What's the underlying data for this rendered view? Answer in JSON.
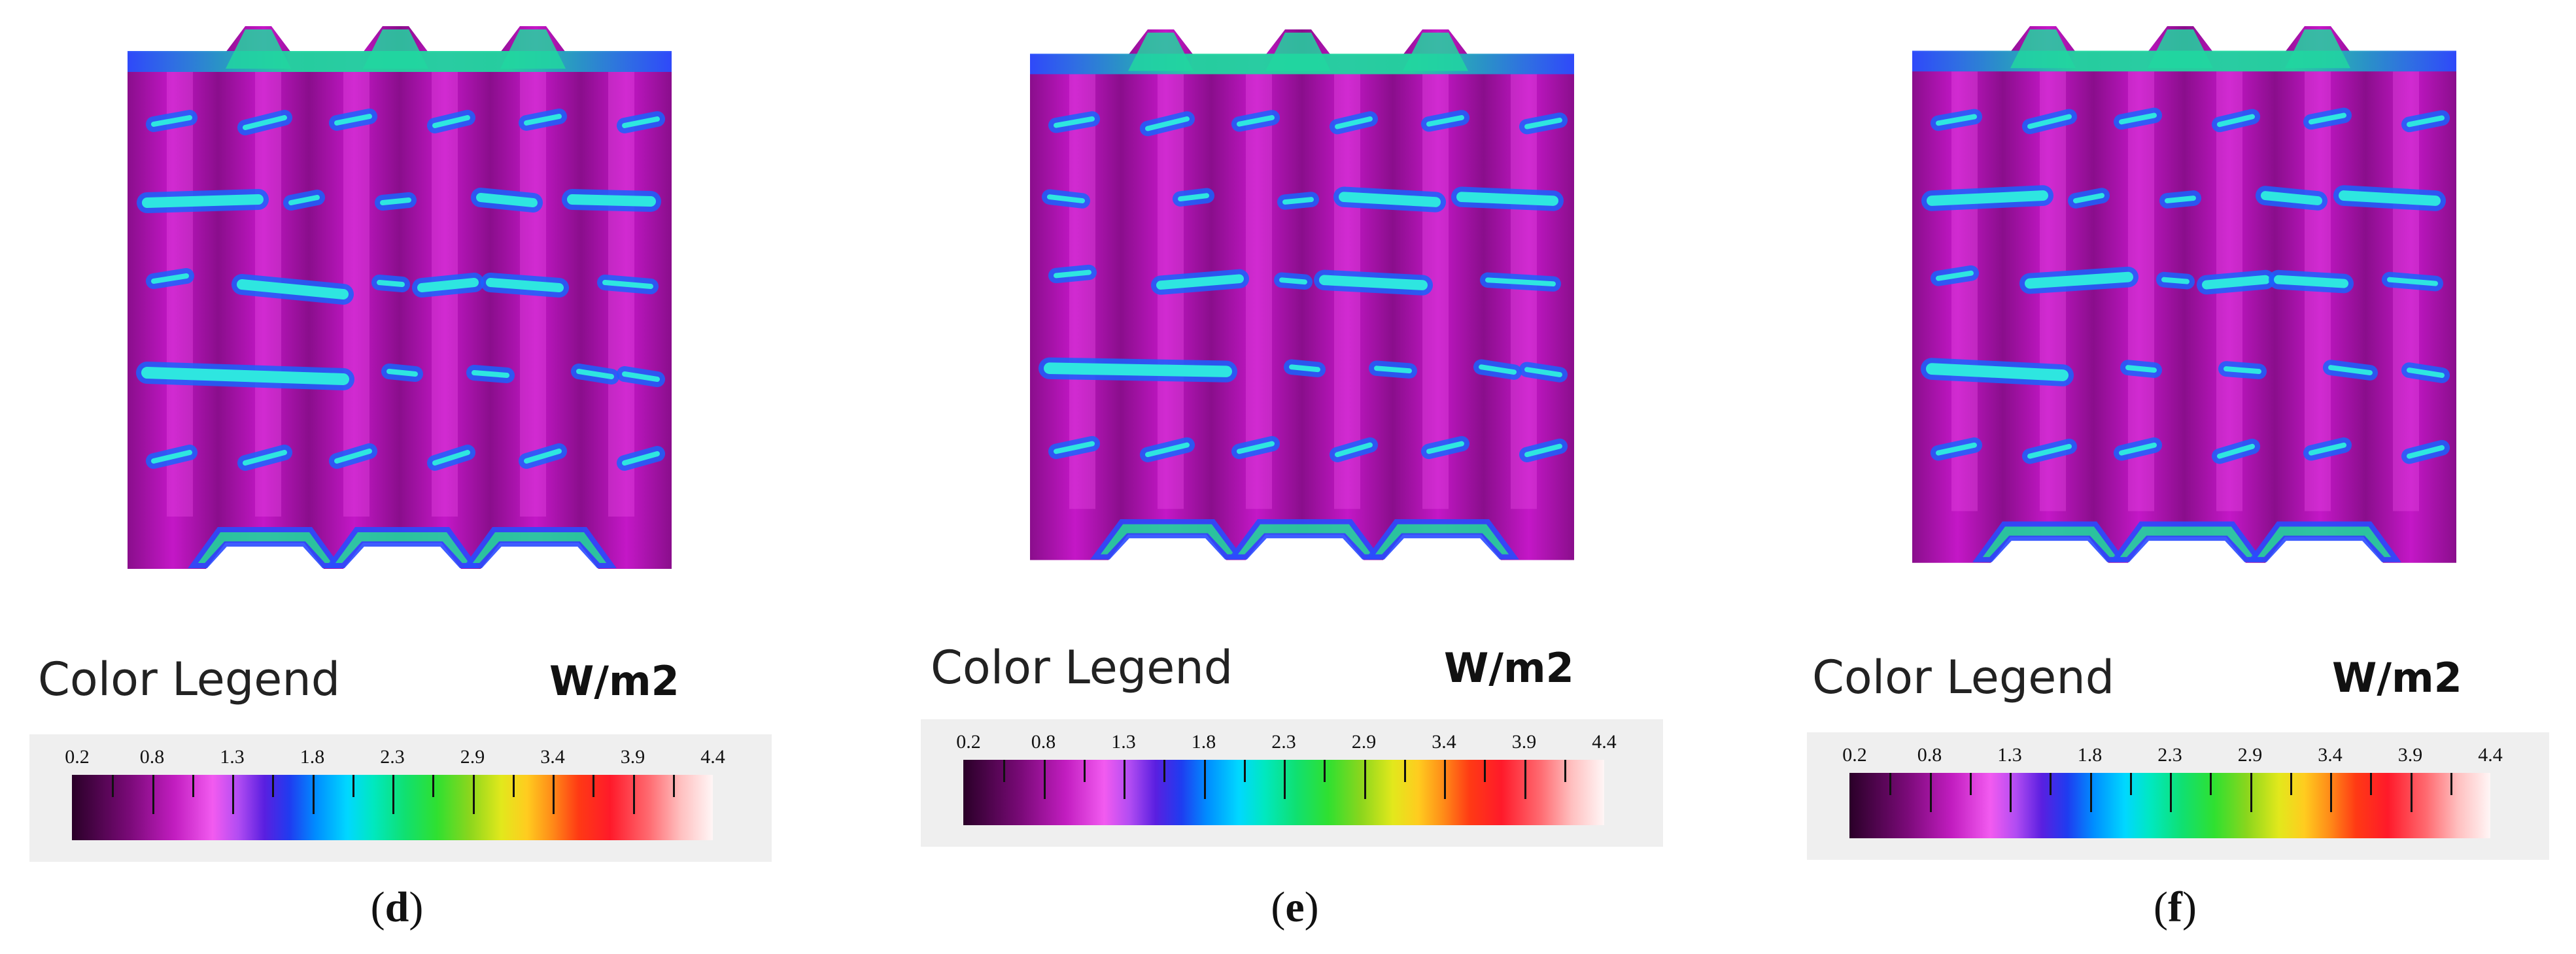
{
  "legend": {
    "title": "Color Legend",
    "unit": "W/m2",
    "ticks": [
      "0.2",
      "0.8",
      "1.3",
      "1.8",
      "2.3",
      "2.9",
      "3.4",
      "3.9",
      "4.4"
    ],
    "scale_min": 0.2,
    "scale_max": 4.4
  },
  "panels": [
    {
      "id": "d",
      "label": "d"
    },
    {
      "id": "e",
      "label": "e"
    },
    {
      "id": "f",
      "label": "f"
    }
  ],
  "colors": {
    "field_base": "#c417c7",
    "field_dark": "#8a0e8c",
    "field_light": "#ea4ee6",
    "slot_blue": "#1a62ff",
    "slot_cyan": "#2ee6e0",
    "edge_blue": "#2a4cff",
    "edge_green": "#21d6a0"
  }
}
